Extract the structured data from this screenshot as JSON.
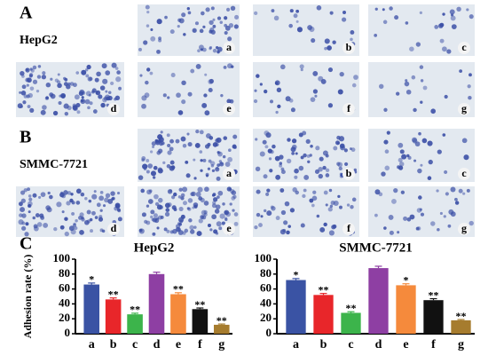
{
  "panels": {
    "A": "A",
    "A_cell": "HepG2",
    "B": "B",
    "B_cell": "SMMC-7721",
    "C": "C"
  },
  "images": [
    {
      "label": "a"
    },
    {
      "label": "b"
    },
    {
      "label": "c"
    },
    {
      "label": "d"
    },
    {
      "label": "e"
    },
    {
      "label": "f"
    },
    {
      "label": "g"
    },
    {
      "label": "a"
    },
    {
      "label": "b"
    },
    {
      "label": "c"
    },
    {
      "label": "d"
    },
    {
      "label": "e"
    },
    {
      "label": "f"
    },
    {
      "label": "g"
    }
  ],
  "chart_data": [
    {
      "type": "bar",
      "title": "HepG2",
      "ylabel": "Adhesion rate (%)",
      "categories": [
        "a",
        "b",
        "c",
        "d",
        "e",
        "f",
        "g"
      ],
      "values": [
        66,
        46,
        26,
        80,
        53,
        33,
        12
      ],
      "errors": [
        2,
        2,
        1.5,
        2.5,
        2,
        1.5,
        1
      ],
      "significance": [
        "*",
        "**",
        "**",
        null,
        "**",
        "**",
        "**"
      ],
      "colors": [
        "#3a53a4",
        "#e8262a",
        "#3cb44b",
        "#8e3fa3",
        "#f58a3c",
        "#111111",
        "#a67c2e"
      ],
      "ylim": [
        0,
        100
      ],
      "yticks": [
        0,
        20,
        40,
        60,
        80,
        100
      ]
    },
    {
      "type": "bar",
      "title": "SMMC-7721",
      "ylabel": "Adhesion rate (%)",
      "categories": [
        "a",
        "b",
        "c",
        "d",
        "e",
        "f",
        "g"
      ],
      "values": [
        72,
        52,
        28,
        88,
        65,
        45,
        18
      ],
      "errors": [
        2,
        2,
        1.5,
        2.5,
        2,
        2,
        1
      ],
      "significance": [
        "*",
        "**",
        "**",
        null,
        "*",
        "**",
        "**"
      ],
      "colors": [
        "#3a53a4",
        "#e8262a",
        "#3cb44b",
        "#8e3fa3",
        "#f58a3c",
        "#111111",
        "#a67c2e"
      ],
      "ylim": [
        0,
        100
      ],
      "yticks": [
        0,
        20,
        40,
        60,
        80,
        100
      ]
    }
  ]
}
